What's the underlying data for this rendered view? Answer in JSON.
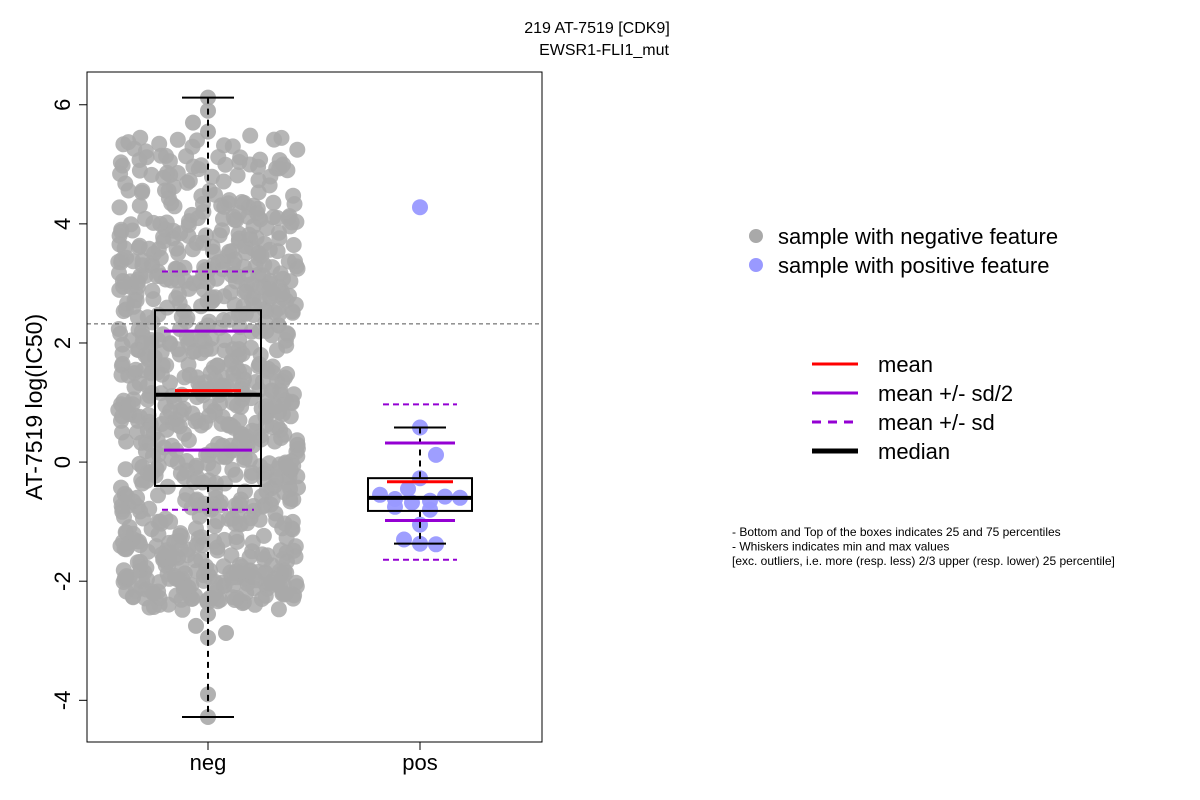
{
  "chart_data": {
    "type": "boxplot",
    "title_line1": "219 AT-7519 [CDK9]",
    "title_line2": "EWSR1-FLI1_mut",
    "ylabel": "AT-7519 log(IC50)",
    "xlabel": "",
    "categories": [
      "neg",
      "pos"
    ],
    "ylim": [
      -4.7,
      6.55
    ],
    "yticks": [
      -4,
      -2,
      0,
      2,
      4,
      6
    ],
    "ytick_labels": [
      "-4",
      "-2",
      "0",
      "2",
      "4",
      "6"
    ],
    "threshold_line": 2.32,
    "colors": {
      "neg_points": "#a9a9a9",
      "pos_points": "#9999ff",
      "mean": "#ff0000",
      "sd": "#9400d3",
      "median": "#000000"
    },
    "groups": [
      {
        "name": "neg",
        "q1": -0.4,
        "median": 1.13,
        "q3": 2.55,
        "whisker_low": -4.28,
        "whisker_high": 6.12,
        "mean": 1.2,
        "mean_minus_half_sd": 0.2,
        "mean_plus_half_sd": 2.2,
        "mean_minus_sd": -0.8,
        "mean_plus_sd": 3.2,
        "n_points_approx": 900,
        "points": [
          6.12,
          5.9,
          5.7,
          5.55,
          5.4,
          5.3,
          5.2,
          5.1,
          5.0,
          4.9,
          4.8,
          4.6,
          4.5,
          4.3,
          4.2,
          4.0,
          3.8,
          3.6,
          3.4,
          3.2,
          3.0,
          2.8,
          2.6,
          2.4,
          2.2,
          2.0,
          1.8,
          1.6,
          1.4,
          1.2,
          1.0,
          0.8,
          0.6,
          0.4,
          0.2,
          0.0,
          -0.2,
          -0.4,
          -0.6,
          -0.8,
          -1.0,
          -1.2,
          -1.4,
          -1.6,
          -1.8,
          -2.0,
          -2.2,
          -2.4,
          -2.55,
          -2.75,
          -2.87,
          -2.95,
          -3.9,
          -4.28
        ]
      },
      {
        "name": "pos",
        "q1": -0.82,
        "median": -0.6,
        "q3": -0.27,
        "whisker_low": -1.37,
        "whisker_high": 0.58,
        "mean": -0.33,
        "mean_minus_half_sd": -0.98,
        "mean_plus_half_sd": 0.32,
        "mean_minus_sd": -1.64,
        "mean_plus_sd": 0.97,
        "outliers": [
          4.28
        ],
        "points": [
          4.28,
          0.58,
          0.12,
          -0.27,
          -0.45,
          -0.55,
          -0.58,
          -0.6,
          -0.62,
          -0.65,
          -0.68,
          -0.75,
          -0.8,
          -1.05,
          -1.3,
          -1.37,
          -1.38
        ]
      }
    ],
    "legend_points": [
      {
        "label": "sample with negative feature",
        "color": "#a9a9a9"
      },
      {
        "label": "sample with positive feature",
        "color": "#9999ff"
      }
    ],
    "legend_lines": [
      {
        "label": "mean",
        "color": "#ff0000",
        "style": "solid"
      },
      {
        "label": "mean +/- sd/2",
        "color": "#9400d3",
        "style": "solid"
      },
      {
        "label": "mean +/- sd",
        "color": "#9400d3",
        "style": "dashed"
      },
      {
        "label": "median",
        "color": "#000000",
        "style": "thick"
      }
    ],
    "notes": [
      "- Bottom and Top of the boxes indicates 25 and 75 percentiles",
      "- Whiskers indicates min and max values",
      "[exc. outliers, i.e. more (resp. less) 2/3 upper (resp. lower) 25 percentile]"
    ]
  }
}
